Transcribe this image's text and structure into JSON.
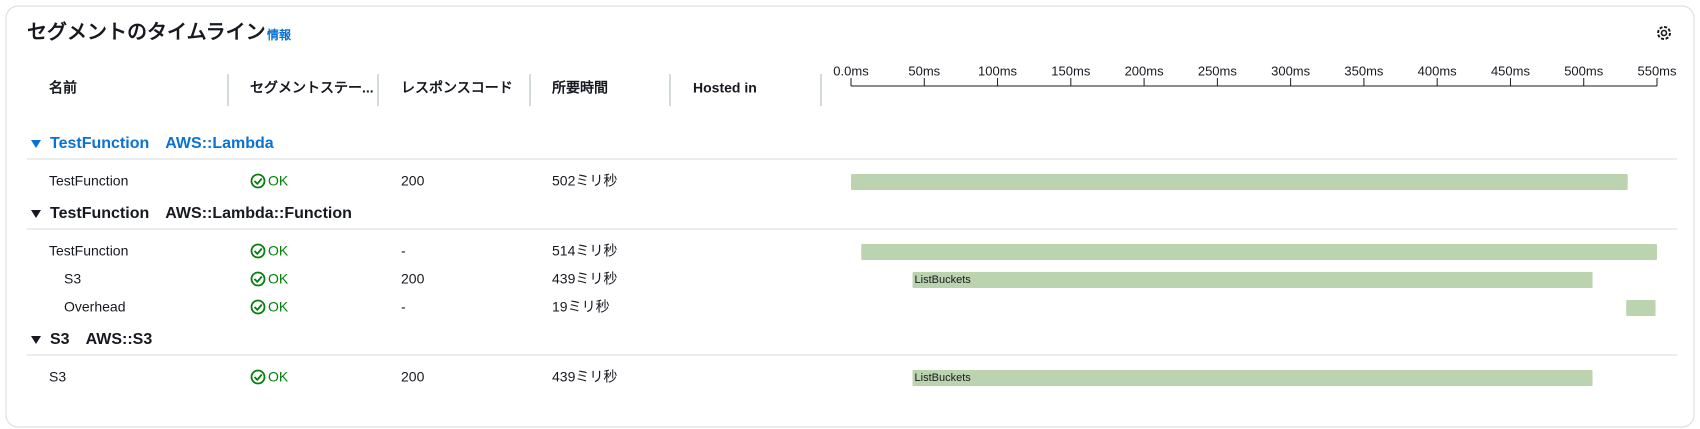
{
  "header": {
    "title": "セグメントのタイムライン",
    "info": "情報"
  },
  "columns": [
    "名前",
    "セグメントステー...",
    "レスポンスコード",
    "所要時間",
    "Hosted in"
  ],
  "timeline": {
    "xlim": [
      0,
      550
    ],
    "xticks": [
      {
        "value": 0,
        "label": "0.0ms"
      },
      {
        "value": 50,
        "label": "50ms"
      },
      {
        "value": 100,
        "label": "100ms"
      },
      {
        "value": 150,
        "label": "150ms"
      },
      {
        "value": 200,
        "label": "200ms"
      },
      {
        "value": 250,
        "label": "250ms"
      },
      {
        "value": 300,
        "label": "300ms"
      },
      {
        "value": 350,
        "label": "350ms"
      },
      {
        "value": 400,
        "label": "400ms"
      },
      {
        "value": 450,
        "label": "450ms"
      },
      {
        "value": 500,
        "label": "500ms"
      },
      {
        "value": 550,
        "label": "550ms"
      }
    ],
    "bar_color": "#bbd3af"
  },
  "groups": [
    {
      "name": "TestFunction",
      "type": "AWS::Lambda",
      "selected": true,
      "rows": [
        {
          "name": "TestFunction",
          "status": "OK",
          "code": "200",
          "duration": "502ミリ秒",
          "indent": false,
          "bar": {
            "start": 0,
            "end": 530
          }
        }
      ]
    },
    {
      "name": "TestFunction",
      "type": "AWS::Lambda::Function",
      "selected": false,
      "rows": [
        {
          "name": "TestFunction",
          "status": "OK",
          "code": "-",
          "duration": "514ミリ秒",
          "indent": false,
          "bar": {
            "start": 7,
            "end": 550
          }
        },
        {
          "name": "S3",
          "status": "OK",
          "code": "200",
          "duration": "439ミリ秒",
          "indent": true,
          "bar": {
            "start": 42,
            "end": 506,
            "label": "ListBuckets"
          }
        },
        {
          "name": "Overhead",
          "status": "OK",
          "code": "-",
          "duration": "19ミリ秒",
          "indent": true,
          "bar": {
            "start": 529,
            "end": 549
          }
        }
      ]
    },
    {
      "name": "S3",
      "type": "AWS::S3",
      "selected": false,
      "rows": [
        {
          "name": "S3",
          "status": "OK",
          "code": "200",
          "duration": "439ミリ秒",
          "indent": false,
          "bar": {
            "start": 42,
            "end": 506,
            "label": "ListBuckets"
          }
        }
      ]
    }
  ]
}
